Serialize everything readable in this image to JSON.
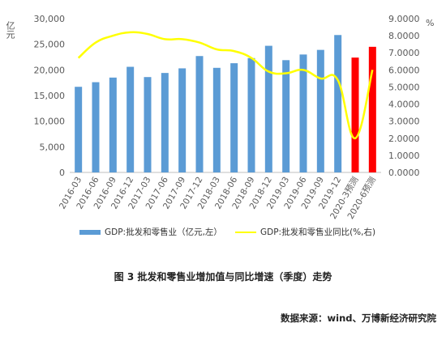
{
  "chart_data": {
    "type": "bar",
    "categories": [
      "2016-03",
      "2016-06",
      "2016-09",
      "2016-12",
      "2017-03",
      "2017-06",
      "2017-09",
      "2017-12",
      "2018-03",
      "2018-06",
      "2018-09",
      "2018-12",
      "2019-03",
      "2019-06",
      "2019-09",
      "2019-12",
      "2020-3预测",
      "2020-6预测"
    ],
    "series": [
      {
        "name": "GDP:批发和零售业（亿元,左）",
        "type": "bar",
        "axis": "left",
        "values": [
          16700,
          17600,
          18500,
          20600,
          18600,
          19400,
          20300,
          22700,
          20400,
          21300,
          22300,
          24700,
          21900,
          23000,
          23900,
          26800,
          22400,
          24500
        ],
        "color": "#5b9bd5",
        "highlight_color": "#ff0000",
        "highlight_indices": [
          16,
          17
        ]
      },
      {
        "name": "GDP:批发和零售业同比(%,右)",
        "type": "line",
        "axis": "right",
        "values": [
          6.7,
          7.6,
          8.0,
          8.2,
          8.1,
          7.8,
          7.8,
          7.6,
          7.2,
          7.1,
          6.7,
          5.9,
          5.8,
          6.0,
          5.5,
          5.4,
          2.0,
          6.0
        ],
        "color": "#ffff00"
      }
    ],
    "ylabel_left": "亿元",
    "ylabel_right": "%",
    "ylim_left": [
      0,
      30000
    ],
    "ylim_right": [
      0,
      9
    ],
    "yticks_left": [
      "0",
      "5,000",
      "10,000",
      "15,000",
      "20,000",
      "25,000",
      "30,000"
    ],
    "yticks_right": [
      "0.0000",
      "1.0000",
      "2.0000",
      "3.0000",
      "4.0000",
      "5.0000",
      "6.0000",
      "7.0000",
      "8.0000",
      "9.0000"
    ],
    "grid": false,
    "legend_position": "bottom"
  },
  "caption": "图 3  批发和零售业增加值与同比增速（季度）走势",
  "source": "数据来源：wind、万博新经济研究院"
}
